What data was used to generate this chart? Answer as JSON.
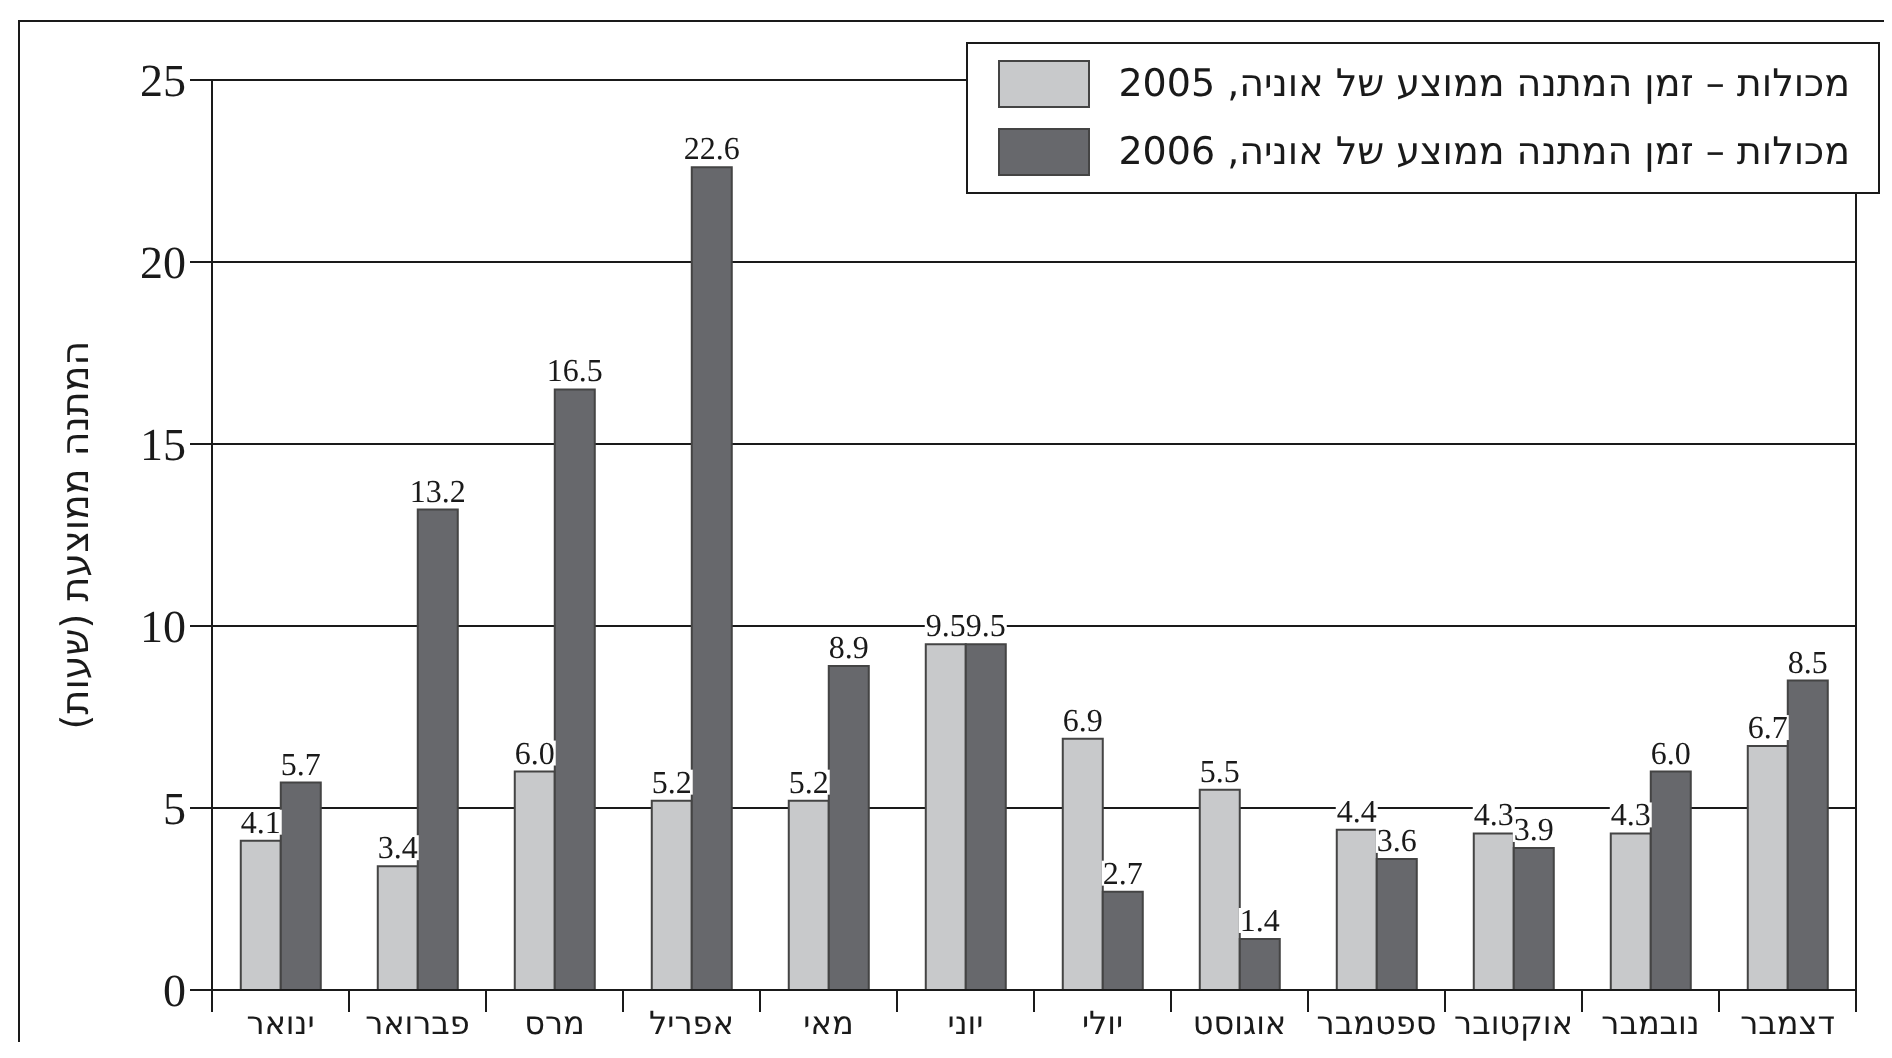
{
  "chart_data": {
    "type": "bar",
    "ylabel": "המתנה ממוצעת (שעות)",
    "categories": [
      "ינואר",
      "פברואר",
      "מרס",
      "אפריל",
      "מאי",
      "יוני",
      "יולי",
      "אוגוסט",
      "ספטמבר",
      "אוקטובר",
      "נובמבר",
      "דצמבר"
    ],
    "series": [
      {
        "name": "מכולות – זמן המתנה ממוצע של אוניה, 2005",
        "color": "#c8c9cb",
        "values": [
          4.1,
          3.4,
          6.0,
          5.2,
          5.2,
          9.5,
          6.9,
          5.5,
          4.4,
          4.3,
          4.3,
          6.7
        ],
        "value_labels": [
          "4.1",
          "3.4",
          "6.0",
          "5.2",
          "5.2",
          "9.5",
          "6.9",
          "5.5",
          "4.4",
          "4.3",
          "4.3",
          "6.7"
        ]
      },
      {
        "name": "מכולות – זמן המתנה ממוצע של אוניה, 2006",
        "color": "#67686c",
        "values": [
          5.7,
          13.2,
          16.5,
          22.6,
          8.9,
          9.5,
          2.7,
          1.4,
          3.6,
          3.9,
          6.0,
          8.5
        ],
        "value_labels": [
          "5.7",
          "13.2",
          "16.5",
          "22.6",
          "8.9",
          "9.5",
          "2.7",
          "1.4",
          "3.6",
          "3.9",
          "6.0",
          "8.5"
        ]
      }
    ],
    "ylim": [
      0,
      25
    ],
    "yticks": [
      0,
      5,
      10,
      15,
      20,
      25
    ],
    "grid": "y",
    "legend": "top right"
  }
}
